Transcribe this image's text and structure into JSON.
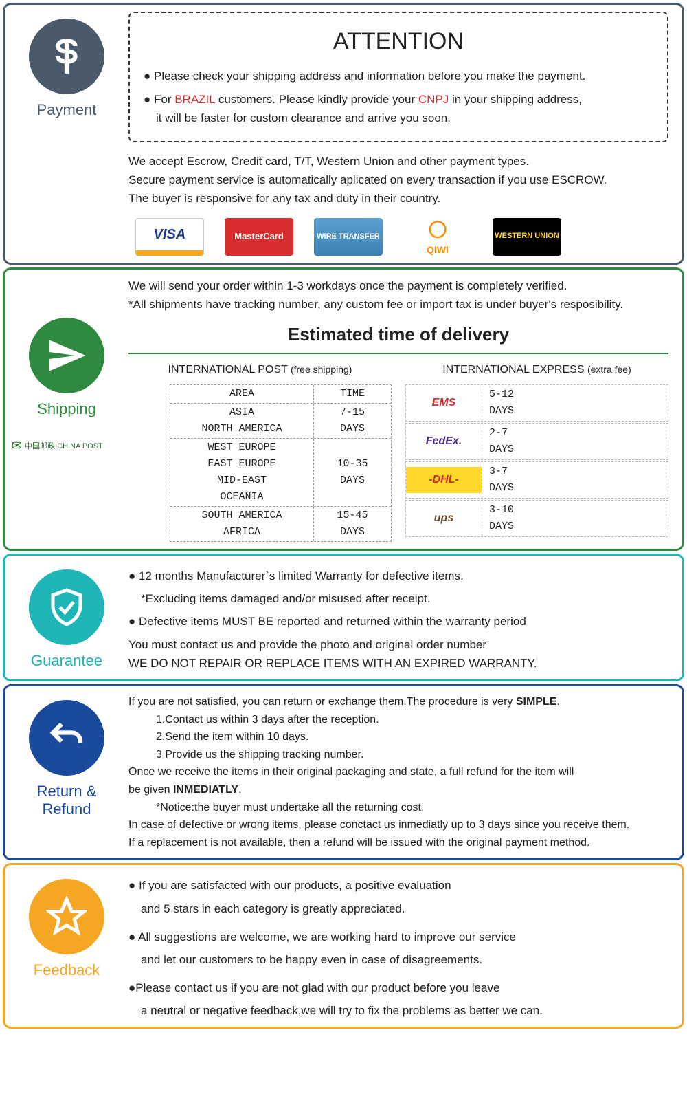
{
  "colors": {
    "payment_border": "#4a5a6a",
    "payment_icon": "#4a5a6a",
    "shipping_border": "#2d8a3e",
    "shipping_icon": "#2d8a3e",
    "guarantee_border": "#1db5b5",
    "guarantee_icon": "#1db5b5",
    "return_border": "#1a4a9c",
    "return_icon": "#1a4a9c",
    "feedback_border": "#f5a623",
    "feedback_icon": "#f5a623",
    "red_text": "#d62e2e"
  },
  "payment": {
    "label": "Payment",
    "attention_title": "ATTENTION",
    "bullet1": "● Please check your shipping address and information before you make the payment.",
    "bullet2_pre": "● For ",
    "bullet2_brazil": "BRAZIL",
    "bullet2_mid": " customers. Please kindly provide your ",
    "bullet2_cnpj": "CNPJ",
    "bullet2_post": " in your shipping address,",
    "bullet2_line2": "it will be faster for custom clearance and arrive you soon.",
    "line1": "We accept Escrow, Credit card, T/T, Western Union and other payment types.",
    "line2": "Secure payment service is automatically aplicated on every transaction if you use ESCROW.",
    "line3": "The buyer is responsive for any tax and duty in their country.",
    "cards": {
      "visa": "VISA",
      "mc": "MasterCard",
      "wire": "WIRE TRANSFER",
      "qiwi": "QIWI",
      "wu": "WESTERN UNION"
    }
  },
  "shipping": {
    "label": "Shipping",
    "line1": "We will send your order within 1-3 workdays once the payment is completely verified.",
    "line2": "*All shipments have tracking number, any custom fee or import tax is under buyer's resposibility.",
    "est_title": "Estimated time of delivery",
    "post_head": "INTERNATIONAL POST",
    "post_sub": "(free shipping)",
    "express_head": "INTERNATIONAL EXPRESS",
    "express_sub": "(extra fee)",
    "chinapost": "中国邮政 CHINA POST",
    "post_table": [
      {
        "area": "AREA",
        "time": "TIME"
      },
      {
        "area": "ASIA",
        "time": "7-15"
      },
      {
        "area": "NORTH AMERICA",
        "time": "DAYS"
      },
      {
        "area": "WEST EUROPE",
        "time": ""
      },
      {
        "area": "EAST EUROPE",
        "time": "10-35"
      },
      {
        "area": "MID-EAST",
        "time": "DAYS"
      },
      {
        "area": "OCEANIA",
        "time": ""
      },
      {
        "area": "SOUTH AMERICA",
        "time": "15-45"
      },
      {
        "area": "AFRICA",
        "time": "DAYS"
      }
    ],
    "express": [
      {
        "logo": "EMS",
        "color": "#d62e2e",
        "time1": "5-12",
        "time2": "DAYS"
      },
      {
        "logo": "FedEx.",
        "color": "#4a2a8c",
        "time1": "2-7",
        "time2": "DAYS"
      },
      {
        "logo": "-DHL-",
        "color": "#d62e2e",
        "bg": "#ffd829",
        "time1": "3-7",
        "time2": "DAYS"
      },
      {
        "logo": "ups",
        "color": "#6b4a2a",
        "time1": "3-10",
        "time2": "DAYS"
      }
    ]
  },
  "guarantee": {
    "label": "Guarantee",
    "b1": "● 12 months Manufacturer`s limited Warranty for defective items.",
    "b1s": "*Excluding items damaged and/or misused after receipt.",
    "b2": "● Defective items MUST BE reported and returned within the warranty period",
    "b3": "You must contact us and provide the photo and original order number",
    "b4": "WE DO NOT REPAIR OR REPLACE ITEMS WITH AN EXPIRED WARRANTY."
  },
  "return": {
    "label": "Return & Refund",
    "l1a": "If you are not satisfied, you can return or exchange them.The procedure is very ",
    "l1b": "SIMPLE",
    "l1c": ".",
    "s1": "1.Contact us within 3 days after the reception.",
    "s2": "2.Send the item within 10 days.",
    "s3": "3 Provide us the shipping tracking number.",
    "l2a": "Once we receive the items in their original packaging and state, a full refund for the item will",
    "l2b": "be given ",
    "l2c": "INMEDIATLY",
    "l2d": ".",
    "notice": "*Notice:the buyer must undertake all the returning cost.",
    "l3": "In case of defective or wrong items, please conctact us inmediatly up to 3 days since you receive them.",
    "l4": "If a replacement is not available, then a refund will be issued with the original payment method."
  },
  "feedback": {
    "label": "Feedback",
    "b1": "● If you are satisfacted with our products, a positive evaluation",
    "b1b": "and 5 stars in each category is greatly appreciated.",
    "b2": "● All suggestions are welcome, we are working hard to improve our service",
    "b2b": "and let our customers to be happy even in case of disagreements.",
    "b3": "●Please contact us if you are not glad with our product before you leave",
    "b3b": "a neutral or negative feedback,we will try to fix the problems as better we can."
  }
}
